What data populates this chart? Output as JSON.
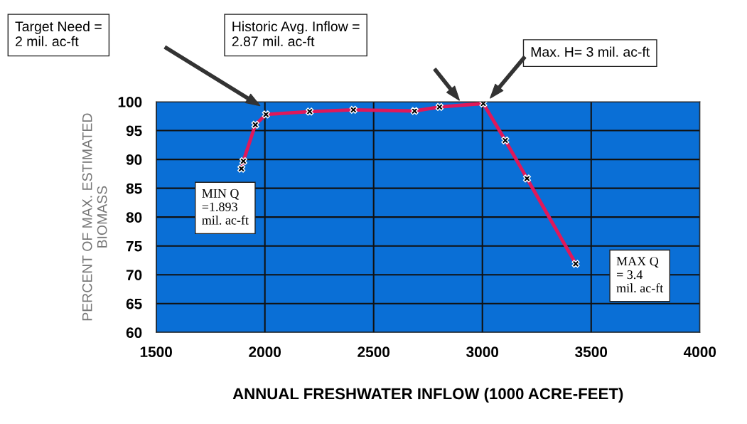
{
  "chart_data": {
    "type": "line",
    "xlabel": "ANNUAL FRESHWATER INFLOW (1000 ACRE-FEET)",
    "ylabel": "PERCENT OF MAX. ESTIMATED\nBIOMASS",
    "series": [
      {
        "color": "#e0185a",
        "x": [
          1892,
          1901,
          1956,
          2005,
          2206,
          2407,
          2688,
          2803,
          3004,
          3105,
          3205,
          3429
        ],
        "values": [
          88.4,
          89.7,
          96.0,
          97.8,
          98.3,
          98.6,
          98.4,
          99.1,
          99.7,
          93.3,
          86.7,
          71.9
        ]
      }
    ],
    "xlim": [
      1500,
      4000
    ],
    "xticks": [
      1500,
      2000,
      2500,
      3000,
      3500,
      4000
    ],
    "ylim": [
      60,
      100
    ],
    "yticks": [
      60,
      65,
      70,
      75,
      80,
      85,
      90,
      95,
      100
    ],
    "grid": true,
    "marker": "cross",
    "line_style": "solid",
    "annotations": [
      "Target Need =\n2 mil. ac-ft",
      "Historic Avg. Inflow =\n2.87 mil. ac-ft",
      "Max. H= 3 mil. ac-ft",
      "MIN Q\n=1.893\nmil. ac-ft",
      "MAX Q\n= 3.4\nmil. ac-ft"
    ]
  }
}
